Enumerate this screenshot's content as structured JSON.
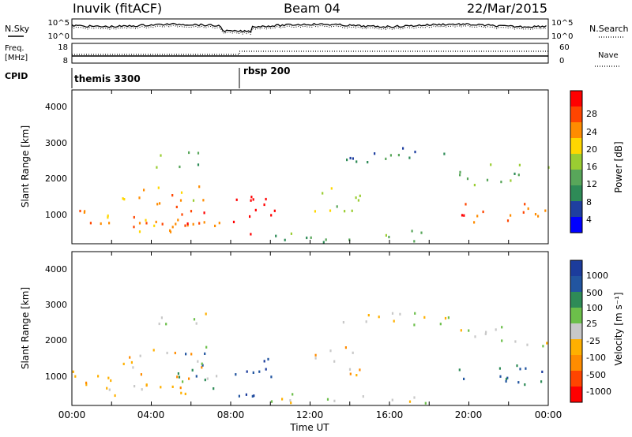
{
  "header": {
    "station": "Inuvik (fitACF)",
    "beam": "Beam 04",
    "date": "22/Mar/2015"
  },
  "top_panels": {
    "nsky_label": "N.Sky",
    "nsky_ticks": [
      "10^5",
      "10^0"
    ],
    "nsearch_label": "N.Search",
    "nsearch_ticks": [
      "10^5",
      "10^0"
    ],
    "freq_label_1": "Freq.",
    "freq_label_2": "[MHz]",
    "freq_ticks": [
      "18",
      "8"
    ],
    "nave_label": "Nave",
    "nave_ticks": [
      "60",
      "0"
    ],
    "cpid_label": "CPID",
    "cpid_segments": [
      {
        "start_hour": 0.0,
        "name": "themis 3300"
      },
      {
        "start_hour": 8.6,
        "name": "rbsp 200"
      }
    ]
  },
  "power_panel": {
    "ylabel": "Slant Range [km]",
    "yticks": [
      "4000",
      "3000",
      "2000",
      "1000"
    ],
    "colorbar_label": "Power [dB]",
    "colorbar_ticks": [
      "28",
      "24",
      "20",
      "16",
      "12",
      "8",
      "4"
    ],
    "colors": [
      "#0000ff",
      "#1f3fa0",
      "#2e8b57",
      "#58a65a",
      "#9acd32",
      "#ffd700",
      "#ff8c00",
      "#ff4500",
      "#ff0000"
    ]
  },
  "velocity_panel": {
    "ylabel": "Slant Range [km]",
    "yticks": [
      "4000",
      "3000",
      "2000",
      "1000"
    ],
    "colorbar_label": "Velocity [m s⁻¹]",
    "colorbar_ticks": [
      "1000",
      "500",
      "100",
      "25",
      "-25",
      "-100",
      "-500",
      "-1000"
    ],
    "colors": [
      "#1c3c9c",
      "#2255a0",
      "#2e8b57",
      "#6cbf4a",
      "#c8c8c8",
      "#ffb000",
      "#ff8c00",
      "#ff4500",
      "#ff0000"
    ]
  },
  "x_axis": {
    "ticks": [
      "00:00",
      "04:00",
      "08:00",
      "12:00",
      "16:00",
      "20:00",
      "00:00"
    ],
    "label": "Time UT"
  },
  "chart_data": {
    "type": "heatmap",
    "x_range_hours": [
      0,
      24
    ],
    "y_range_km": [
      180,
      4600
    ],
    "power_range_db": [
      0,
      32
    ],
    "velocity_range_ms": [
      -1200,
      1200
    ],
    "echo_regions": [
      {
        "t0": 0.0,
        "t1": 7.5,
        "r0": 500,
        "r1": 1200,
        "power": 24,
        "velocity": -300
      },
      {
        "t0": 2.5,
        "t1": 6.5,
        "r0": 1300,
        "r1": 1900,
        "power": 20,
        "velocity": -150
      },
      {
        "t0": 4.0,
        "t1": 6.8,
        "r0": 2400,
        "r1": 2900,
        "power": 14,
        "velocity": 20
      },
      {
        "t0": 5.0,
        "t1": 7.2,
        "r0": 700,
        "r1": 1900,
        "power": 26,
        "velocity": 600
      },
      {
        "t0": 8.0,
        "t1": 10.2,
        "r0": 400,
        "r1": 1600,
        "power": 30,
        "velocity": 900
      },
      {
        "t0": 12.0,
        "t1": 14.5,
        "r0": 1000,
        "r1": 1900,
        "power": 18,
        "velocity": -200
      },
      {
        "t0": 10.0,
        "t1": 18.0,
        "r0": 250,
        "r1": 600,
        "power": 12,
        "velocity": 50
      },
      {
        "t0": 19.0,
        "t1": 24.0,
        "r0": 800,
        "r1": 1400,
        "power": 26,
        "velocity": 700
      },
      {
        "t0": 19.5,
        "t1": 24.0,
        "r0": 1900,
        "r1": 2500,
        "power": 14,
        "velocity": 0
      },
      {
        "t0": 13.5,
        "t1": 19.0,
        "r0": 2500,
        "r1": 3000,
        "power": 10,
        "velocity": 10
      }
    ]
  }
}
